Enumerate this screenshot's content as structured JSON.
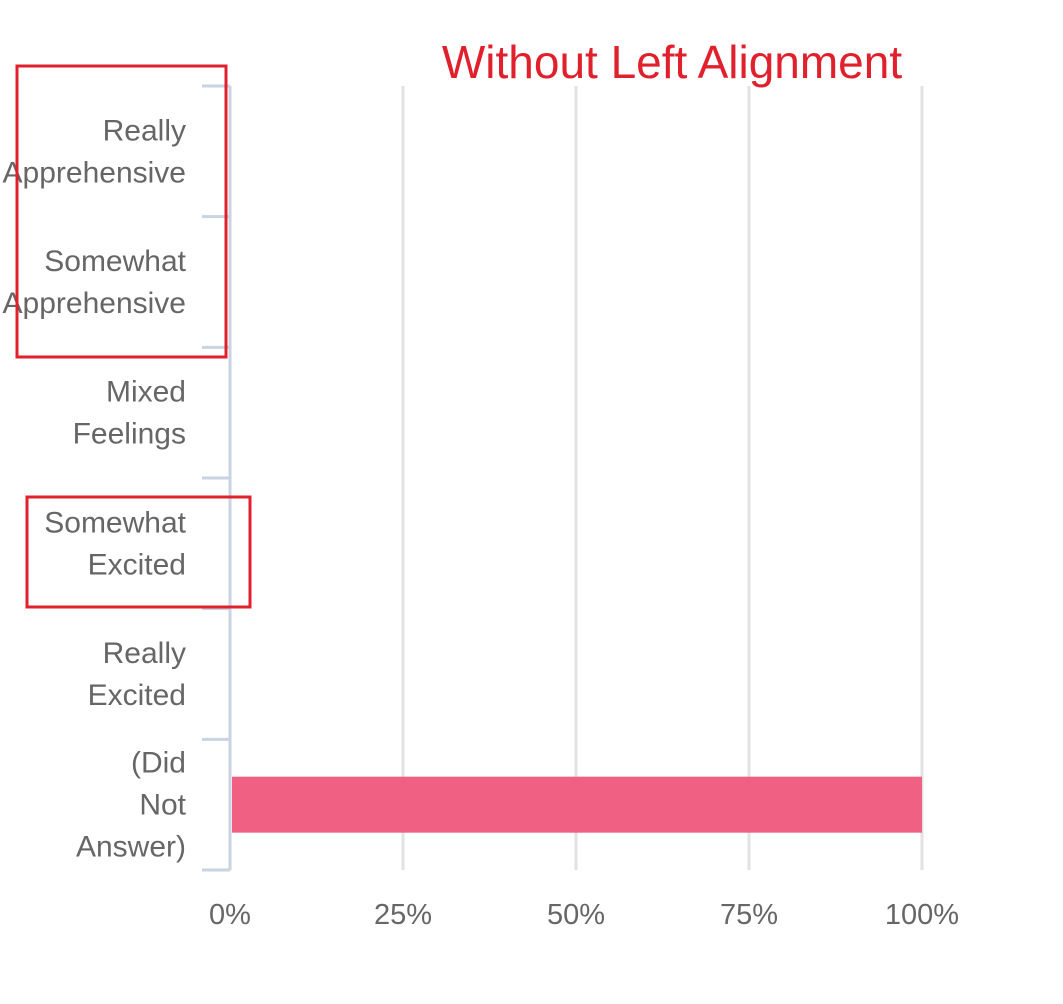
{
  "annotation": {
    "title": "Without Left Alignment"
  },
  "chart_data": {
    "type": "bar",
    "orientation": "horizontal",
    "categories": [
      [
        "Really",
        "Apprehensive"
      ],
      [
        "Somewhat",
        "Apprehensive"
      ],
      [
        "Mixed",
        "Feelings"
      ],
      [
        "Somewhat",
        "Excited"
      ],
      [
        "Really",
        "Excited"
      ],
      [
        "(Did",
        "Not",
        "Answer)"
      ]
    ],
    "values": [
      0,
      0,
      0,
      0,
      0,
      100
    ],
    "x_ticks": [
      "0%",
      "25%",
      "50%",
      "75%",
      "100%"
    ],
    "xlim": [
      0,
      100
    ],
    "grid": true,
    "bar_color": "#f06083",
    "title": "",
    "xlabel": "",
    "ylabel": ""
  },
  "highlight": {
    "color": "#e0202c"
  }
}
